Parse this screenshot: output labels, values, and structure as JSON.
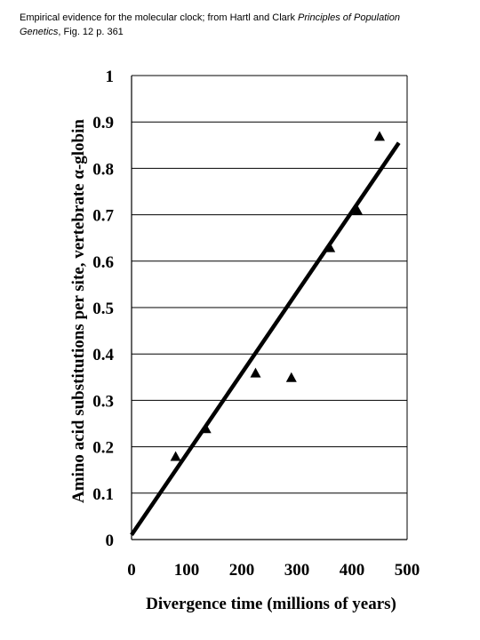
{
  "caption": {
    "line1": "Empirical evidence for the molecular clock; from Hartl and Clark ",
    "book_title_part1": "Principles of Population",
    "book_title_part2": "Genetics",
    "line2_suffix": ", Fig. 12 p. 361"
  },
  "chart_data": {
    "type": "scatter",
    "title": "",
    "xlabel": "Divergence time (millions of years)",
    "ylabel": "Amino acid substitutions per site, vertebrate α-globin",
    "xlim": [
      0,
      500
    ],
    "ylim": [
      0,
      1
    ],
    "x_ticks": [
      "0",
      "100",
      "200",
      "300",
      "400",
      "500"
    ],
    "y_ticks": [
      "0",
      "0.1",
      "0.2",
      "0.3",
      "0.4",
      "0.5",
      "0.6",
      "0.7",
      "0.8",
      "0.9",
      "1"
    ],
    "grid": "horizontal",
    "marker": "triangle",
    "series": [
      {
        "points": [
          {
            "x": 80,
            "y": 0.18
          },
          {
            "x": 135,
            "y": 0.24
          },
          {
            "x": 225,
            "y": 0.36
          },
          {
            "x": 290,
            "y": 0.35
          },
          {
            "x": 360,
            "y": 0.63
          },
          {
            "x": 410,
            "y": 0.71
          },
          {
            "x": 450,
            "y": 0.87
          }
        ]
      }
    ],
    "trend_line": {
      "x": [
        0,
        485
      ],
      "y": [
        0.01,
        0.855
      ]
    }
  }
}
